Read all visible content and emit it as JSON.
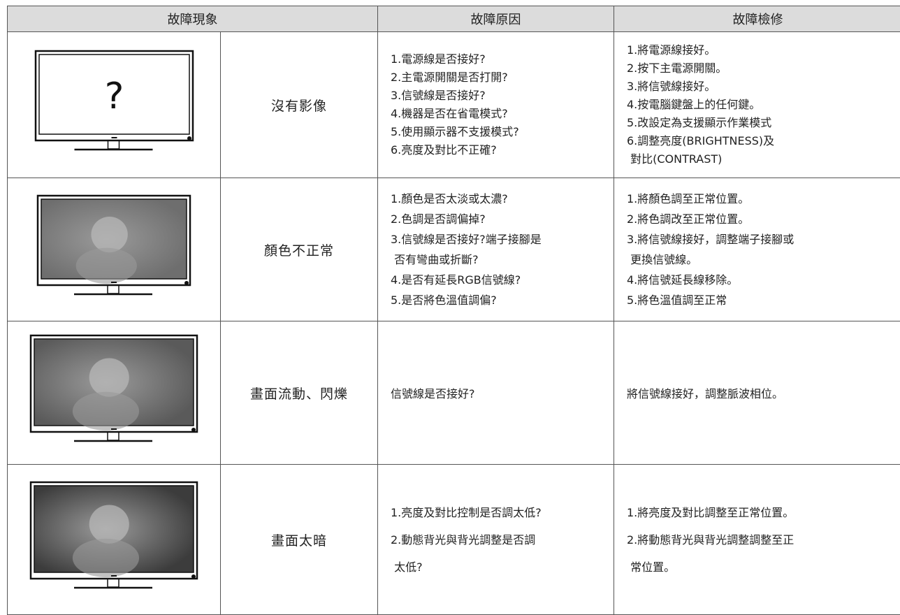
{
  "header": [
    "故障現象",
    "故障原因",
    "故障檢修"
  ],
  "rows": [
    {
      "screen_text": "?",
      "symptom": "沒有影像",
      "causes": [
        "1.電源線是否接好?",
        "2.主電源開關是否打開?",
        "3.信號線是否接好?",
        "4.機器是否在省電模式?",
        "5.使用顯示器不支援模式?",
        "6.亮度及對比不正確?"
      ],
      "fixes": [
        "1.將電源線接好。",
        "2.按下主電源開關。",
        "3.將信號線接好。",
        "4.按電腦鍵盤上的任何鍵。",
        "5.改設定為支援顯示作業模式",
        "6.調整亮度(BRIGHTNESS)及",
        " 對比(CONTRAST)"
      ]
    },
    {
      "symptom": "顏色不正常",
      "causes": [
        "1.顏色是否太淡或太濃?",
        "2.色調是否調偏掉?",
        "3.信號線是否接好?端子接腳是",
        " 否有彎曲或折斷?",
        "4.是否有延長RGB信號線?",
        "5.是否將色溫值調偏?"
      ],
      "fixes": [
        "1.將顏色調至正常位置。",
        "2.將色調改至正常位置。",
        "3.將信號線接好，調整端子接腳或",
        " 更換信號線。",
        "4.將信號延長線移除。",
        "5.將色溫值調至正常"
      ]
    },
    {
      "symptom": "畫面流動、閃爍",
      "causes": [
        "信號線是否接好?"
      ],
      "fixes": [
        "將信號線接好，調整脈波相位。"
      ]
    },
    {
      "symptom": "畫面太暗",
      "causes": [
        "1.亮度及對比控制是否調太低?",
        "2.動態背光與背光調整是否調",
        " 太低?"
      ],
      "fixes": [
        "1.將亮度及對比調整至正常位置。",
        "2.將動態背光與背光調整調整至正",
        " 常位置。"
      ]
    }
  ]
}
